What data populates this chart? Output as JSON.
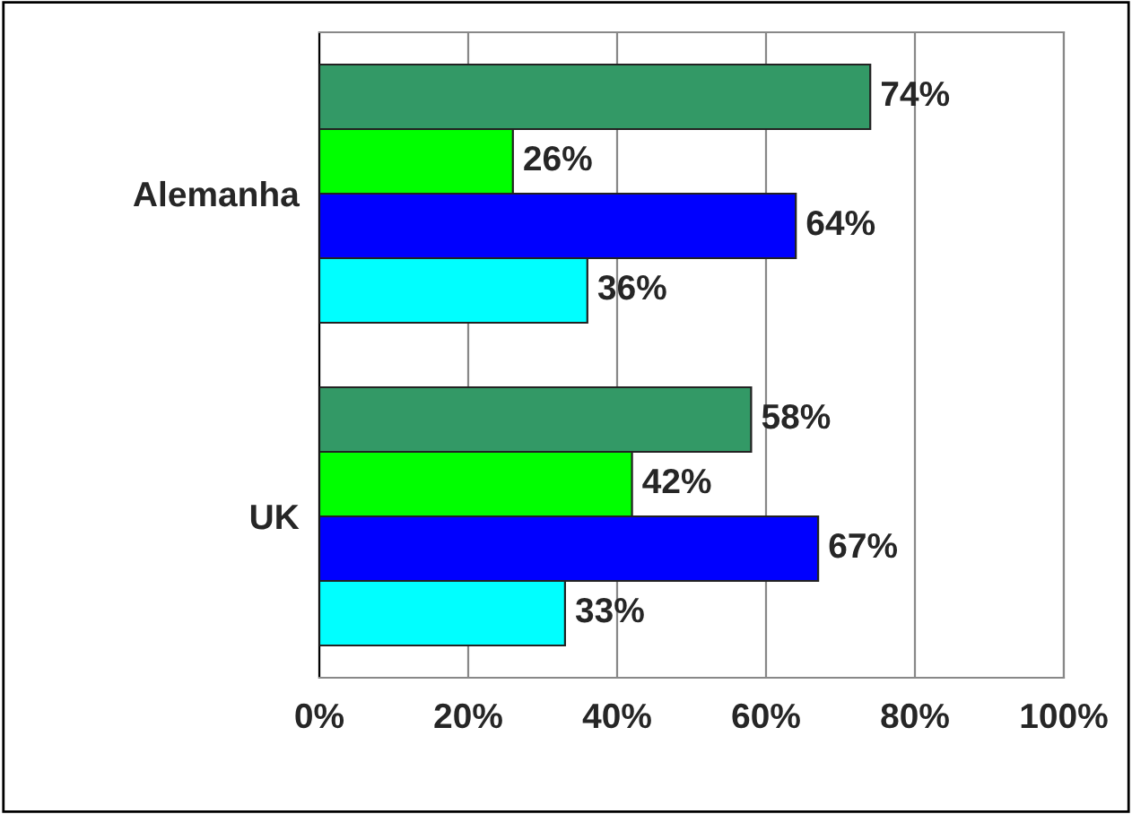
{
  "chart_data": {
    "type": "bar",
    "orientation": "horizontal",
    "categories": [
      "Alemanha",
      "UK"
    ],
    "series": [
      {
        "color": "#339966",
        "values": [
          74,
          58
        ],
        "value_labels": [
          "74%",
          "58%"
        ]
      },
      {
        "color": "#00ff00",
        "values": [
          26,
          42
        ],
        "value_labels": [
          "26%",
          "42%"
        ]
      },
      {
        "color": "#0000ff",
        "values": [
          64,
          67
        ],
        "value_labels": [
          "64%",
          "67%"
        ]
      },
      {
        "color": "#00ffff",
        "values": [
          36,
          33
        ],
        "value_labels": [
          "36%",
          "33%"
        ]
      }
    ],
    "xlim": [
      0,
      100
    ],
    "xticks": [
      {
        "value": 0,
        "label": "0%"
      },
      {
        "value": 20,
        "label": "20%"
      },
      {
        "value": 40,
        "label": "40%"
      },
      {
        "value": 60,
        "label": "60%"
      },
      {
        "value": 80,
        "label": "80%"
      },
      {
        "value": 100,
        "label": "100%"
      }
    ],
    "grid": "x",
    "legend": false
  }
}
